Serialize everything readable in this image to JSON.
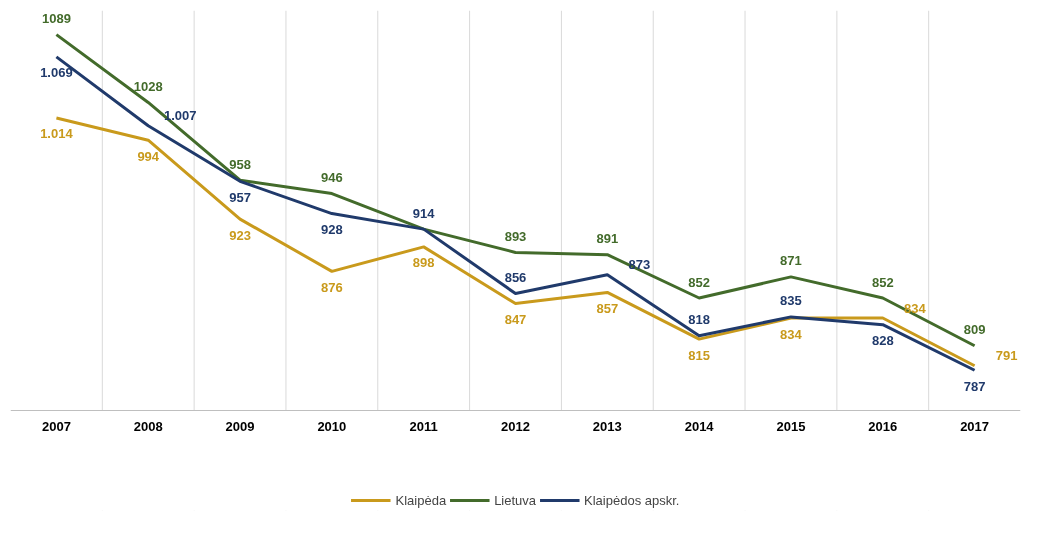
{
  "chart_data": {
    "type": "line",
    "categories": [
      "2007",
      "2008",
      "2009",
      "2010",
      "2011",
      "2012",
      "2013",
      "2014",
      "2015",
      "2016",
      "2017"
    ],
    "series": [
      {
        "name": "Klaipėda",
        "color": "#c99a1c",
        "values": [
          1014,
          994,
          923,
          876,
          898,
          847,
          857,
          815,
          834,
          834,
          791
        ],
        "value_labels": [
          "1.014",
          "994",
          "923",
          "876",
          "898",
          "847",
          "857",
          "815",
          "834",
          "834",
          "791"
        ]
      },
      {
        "name": "Lietuva",
        "color": "#436b2b",
        "values": [
          1089,
          1028,
          958,
          946,
          914,
          893,
          891,
          852,
          871,
          852,
          809
        ],
        "value_labels": [
          "1089",
          "1028",
          "958",
          "946",
          null,
          "893",
          "891",
          "852",
          "871",
          "852",
          "809"
        ]
      },
      {
        "name": "Klaipėdos apskr.",
        "color": "#203a6b",
        "values": [
          1069,
          1007,
          957,
          928,
          914,
          856,
          873,
          818,
          835,
          828,
          787
        ],
        "value_labels": [
          "1.069",
          "1.007",
          "957",
          "928",
          "914",
          "856",
          "873",
          "818",
          "835",
          "828",
          "787"
        ]
      }
    ],
    "grid": "x",
    "legend": "bottom",
    "marker": "none",
    "line_style": "solid"
  }
}
